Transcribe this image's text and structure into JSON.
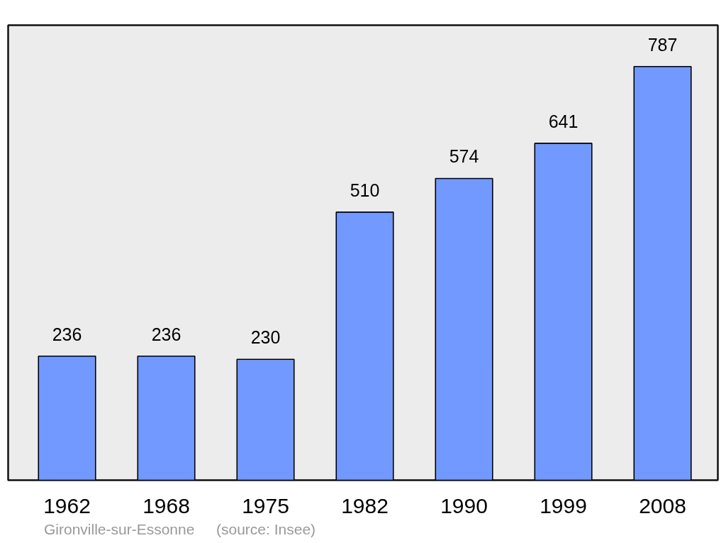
{
  "chart_data": {
    "type": "bar",
    "categories": [
      "1962",
      "1968",
      "1975",
      "1982",
      "1990",
      "1999",
      "2008"
    ],
    "values": [
      236,
      236,
      230,
      510,
      574,
      641,
      787
    ],
    "color": "#7299ff",
    "data_labels": true,
    "annotations": [
      "Gironville-sur-Essonne",
      "(source: Insee)"
    ]
  }
}
